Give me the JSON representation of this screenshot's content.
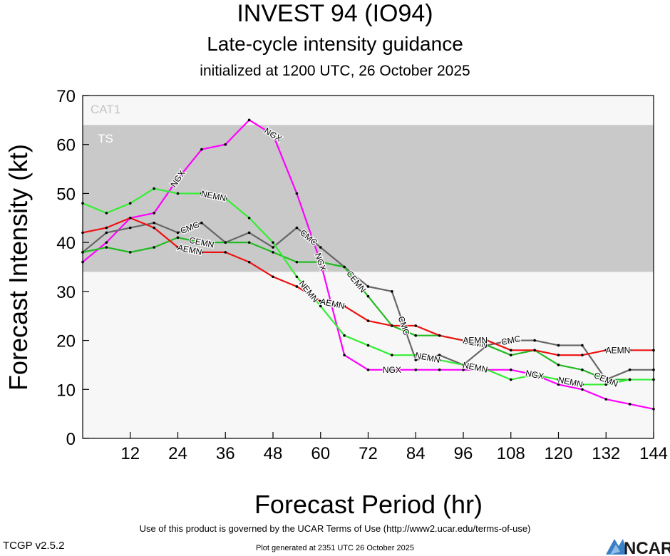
{
  "header": {
    "title": "INVEST 94 (IO94)",
    "subtitle": "Late-cycle intensity guidance",
    "init": "initialized at 1200 UTC, 26 October 2025"
  },
  "footer": {
    "terms": "Use of this product is governed by the UCAR Terms of Use (http://www2.ucar.edu/terms-of-use)",
    "version": "TCGP v2.5.2",
    "generated": "Plot generated at 2351 UTC   26 October 2025",
    "logo_text": "NCAR"
  },
  "chart_data": {
    "type": "line",
    "xlabel": "Forecast Period (hr)",
    "ylabel": "Forecast Intensity (kt)",
    "xlim": [
      0,
      144
    ],
    "ylim": [
      0,
      70
    ],
    "xticks": [
      12,
      24,
      36,
      48,
      60,
      72,
      84,
      96,
      108,
      120,
      132,
      144
    ],
    "yticks": [
      0,
      10,
      20,
      30,
      40,
      50,
      60,
      70
    ],
    "bands": [
      {
        "label": "TS",
        "from": 34,
        "to": 64,
        "color": "#c9c9c9"
      },
      {
        "label": "CAT1",
        "from": 64,
        "to": 70,
        "color": "#f7f7f7"
      }
    ],
    "below_band_color": "#f7f7f7",
    "series": [
      {
        "name": "NGX",
        "color": "#ff00ff",
        "x": [
          0,
          6,
          12,
          18,
          24,
          30,
          36,
          42,
          48,
          54,
          60,
          66,
          72,
          78,
          84,
          90,
          96,
          102,
          108,
          114,
          120,
          126,
          132,
          138,
          144
        ],
        "y": [
          36,
          40,
          45,
          46,
          53,
          59,
          60,
          65,
          62,
          50,
          36,
          17,
          14,
          14,
          14,
          14,
          14,
          14,
          14,
          13,
          11,
          10,
          8,
          7,
          6
        ],
        "label_positions": [
          24,
          48,
          60,
          78,
          114
        ]
      },
      {
        "name": "CMC",
        "color": "#666666",
        "x": [
          0,
          6,
          12,
          18,
          24,
          30,
          36,
          42,
          48,
          54,
          60,
          66,
          72,
          78,
          84,
          90,
          96,
          102,
          108,
          114,
          120,
          126,
          132,
          138,
          144
        ],
        "y": [
          38,
          42,
          43,
          44,
          42,
          44,
          40,
          42,
          39,
          43,
          39,
          35,
          31,
          30,
          16,
          17,
          15,
          19,
          20,
          20,
          19,
          19,
          12,
          14,
          14
        ],
        "label_positions": [
          27,
          57,
          81,
          108
        ]
      },
      {
        "name": "CEMN",
        "color": "#22bb22",
        "x": [
          0,
          6,
          12,
          18,
          24,
          30,
          36,
          42,
          48,
          54,
          60,
          66,
          72,
          78,
          84,
          90,
          96,
          102,
          108,
          114,
          120,
          126,
          132,
          138
        ],
        "y": [
          38,
          39,
          38,
          39,
          41,
          40,
          40,
          40,
          38,
          36,
          36,
          35,
          29,
          23,
          21,
          21,
          20,
          19,
          17,
          18,
          15,
          14,
          12,
          12
        ],
        "label_positions": [
          30,
          69,
          99,
          132
        ]
      },
      {
        "name": "AEMN",
        "color": "#ee1111",
        "x": [
          0,
          6,
          12,
          18,
          24,
          30,
          36,
          42,
          48,
          54,
          60,
          66,
          72,
          78,
          84,
          90,
          96,
          102,
          108,
          114,
          120,
          126,
          132,
          138,
          144
        ],
        "y": [
          42,
          43,
          45,
          43,
          39,
          38,
          38,
          36,
          33,
          31,
          28,
          27,
          24,
          23,
          23,
          21,
          20,
          20,
          18,
          18,
          17,
          17,
          18,
          18,
          18
        ],
        "label_positions": [
          27,
          63,
          99,
          135
        ]
      },
      {
        "name": "NEMN",
        "color": "#33ee33",
        "x": [
          0,
          6,
          12,
          18,
          24,
          30,
          36,
          42,
          48,
          54,
          60,
          66,
          72,
          78,
          84,
          90,
          96,
          102,
          108,
          114,
          120,
          126,
          132,
          138,
          144
        ],
        "y": [
          48,
          46,
          48,
          51,
          50,
          50,
          49,
          45,
          40,
          33,
          27,
          21,
          19,
          17,
          17,
          16,
          15,
          14,
          12,
          13,
          12,
          11,
          11,
          12,
          12
        ],
        "label_positions": [
          33,
          57,
          87,
          99,
          123
        ]
      }
    ]
  }
}
